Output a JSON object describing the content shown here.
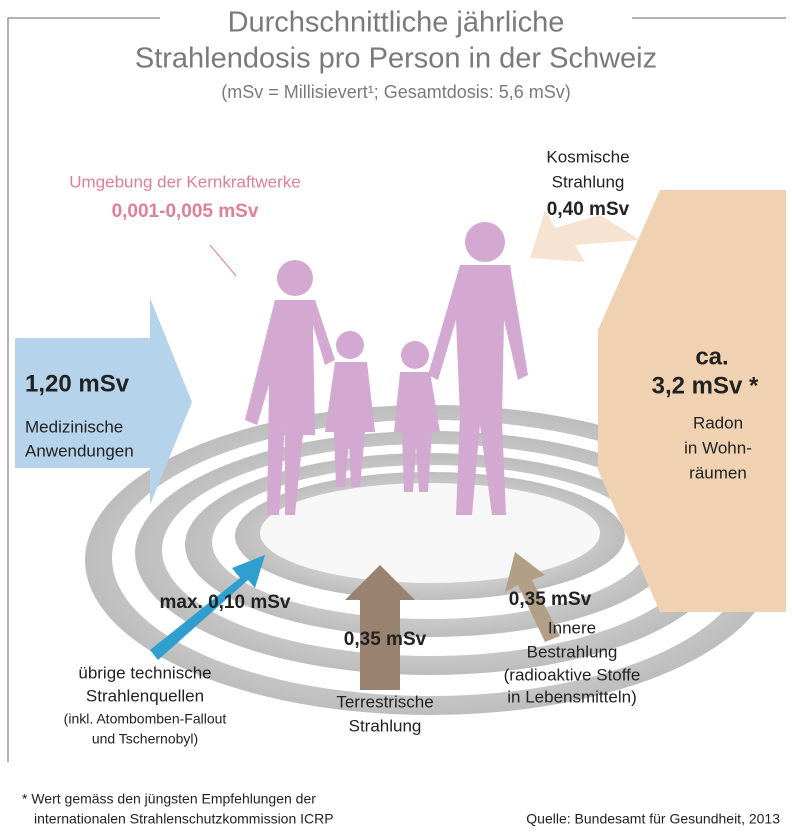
{
  "header": {
    "title_lines": [
      "Durchschnittliche jährliche",
      "Strahlendosis pro Person in der Schweiz"
    ],
    "subtitle": "(mSv = Millisievert¹; Gesamtdosis: 5,6 mSv)"
  },
  "sources": {
    "nuclear": {
      "label": "Umgebung der Kernkraftwerke",
      "value": "0,001-0,005 mSv"
    },
    "cosmic": {
      "label_lines": [
        "Kosmische",
        "Strahlung"
      ],
      "value": "0,40 mSv"
    },
    "medical": {
      "value": "1,20 mSv",
      "label_lines": [
        "Medizinische",
        "Anwendungen"
      ]
    },
    "radon": {
      "value_lines": [
        "ca.",
        "3,2 mSv *"
      ],
      "label_lines": [
        "Radon",
        "in Wohn-",
        "räumen"
      ]
    },
    "technical": {
      "value": "max. 0,10 mSv",
      "label_lines": [
        "übrige technische",
        "Strahlenquellen"
      ],
      "note_lines": [
        "(inkl. Atombomben-Fallout",
        "und Tschernobyl)"
      ]
    },
    "terrestrial": {
      "value": "0,35 mSv",
      "label_lines": [
        "Terrestrische",
        "Strahlung"
      ]
    },
    "internal": {
      "value": "0,35 mSv",
      "label_lines": [
        "Innere",
        "Bestrahlung",
        "(radioaktive Stoffe",
        "in Lebensmitteln)"
      ]
    }
  },
  "footer": {
    "footnote_lines": [
      "* Wert gemäss den jüngsten Empfehlungen der",
      "internationalen Strahlenschutzkommission ICRP"
    ],
    "source": "Quelle: Bundesamt für Gesundheit, 2013"
  }
}
